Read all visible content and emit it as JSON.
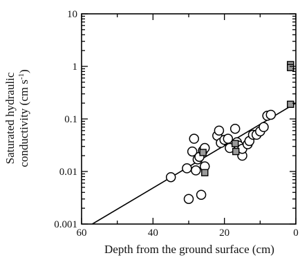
{
  "chart_data": {
    "type": "scatter",
    "xlabel": "Depth from the ground surface (cm)",
    "ylabel": {
      "line1": "Saturated hydraulic",
      "line2_prefix": "conductivity (cm s",
      "line2_sup": "-1",
      "line2_suffix": ")"
    },
    "xlim": [
      60,
      0
    ],
    "ylim": [
      0.001,
      10
    ],
    "y_scale": "log",
    "x_reversed": true,
    "x_ticks": [
      60,
      40,
      20,
      0
    ],
    "x_tick_labels": [
      "60",
      "40",
      "20",
      "0"
    ],
    "y_ticks": [
      0.001,
      0.01,
      0.1,
      1,
      10
    ],
    "y_tick_labels": [
      "0.001",
      "0.01",
      "0.1",
      "1",
      "10"
    ],
    "grid": false,
    "series": [
      {
        "marker": "open-circle",
        "color": "#000000",
        "points": [
          {
            "x": 35,
            "y": 0.0078
          },
          {
            "x": 30.5,
            "y": 0.0115
          },
          {
            "x": 30,
            "y": 0.003
          },
          {
            "x": 29,
            "y": 0.024
          },
          {
            "x": 28.5,
            "y": 0.042
          },
          {
            "x": 28,
            "y": 0.0105
          },
          {
            "x": 27.5,
            "y": 0.017
          },
          {
            "x": 27,
            "y": 0.019
          },
          {
            "x": 26.5,
            "y": 0.0036
          },
          {
            "x": 26,
            "y": 0.025
          },
          {
            "x": 25.5,
            "y": 0.028
          },
          {
            "x": 25.5,
            "y": 0.0125
          },
          {
            "x": 22,
            "y": 0.048
          },
          {
            "x": 21.5,
            "y": 0.06
          },
          {
            "x": 21,
            "y": 0.035
          },
          {
            "x": 20,
            "y": 0.04
          },
          {
            "x": 19,
            "y": 0.042
          },
          {
            "x": 18.5,
            "y": 0.028
          },
          {
            "x": 17,
            "y": 0.065
          },
          {
            "x": 16.5,
            "y": 0.036
          },
          {
            "x": 16,
            "y": 0.031
          },
          {
            "x": 15,
            "y": 0.02
          },
          {
            "x": 15,
            "y": 0.027
          },
          {
            "x": 13.5,
            "y": 0.033
          },
          {
            "x": 13,
            "y": 0.038
          },
          {
            "x": 12,
            "y": 0.05
          },
          {
            "x": 11,
            "y": 0.05
          },
          {
            "x": 10,
            "y": 0.058
          },
          {
            "x": 9,
            "y": 0.07
          },
          {
            "x": 8,
            "y": 0.115
          },
          {
            "x": 7,
            "y": 0.12
          }
        ]
      },
      {
        "marker": "gray-square",
        "color": "#9a9a9a",
        "points": [
          {
            "x": 26,
            "y": 0.023
          },
          {
            "x": 25.5,
            "y": 0.0095
          },
          {
            "x": 17,
            "y": 0.034
          },
          {
            "x": 16.8,
            "y": 0.024
          },
          {
            "x": 1.5,
            "y": 1.08
          },
          {
            "x": 1.5,
            "y": 0.95
          },
          {
            "x": 1.5,
            "y": 0.19
          }
        ]
      }
    ],
    "fit_line": {
      "color": "#000000",
      "points": [
        {
          "x": 57,
          "y": 0.001
        },
        {
          "x": 0,
          "y": 0.2
        }
      ]
    }
  }
}
